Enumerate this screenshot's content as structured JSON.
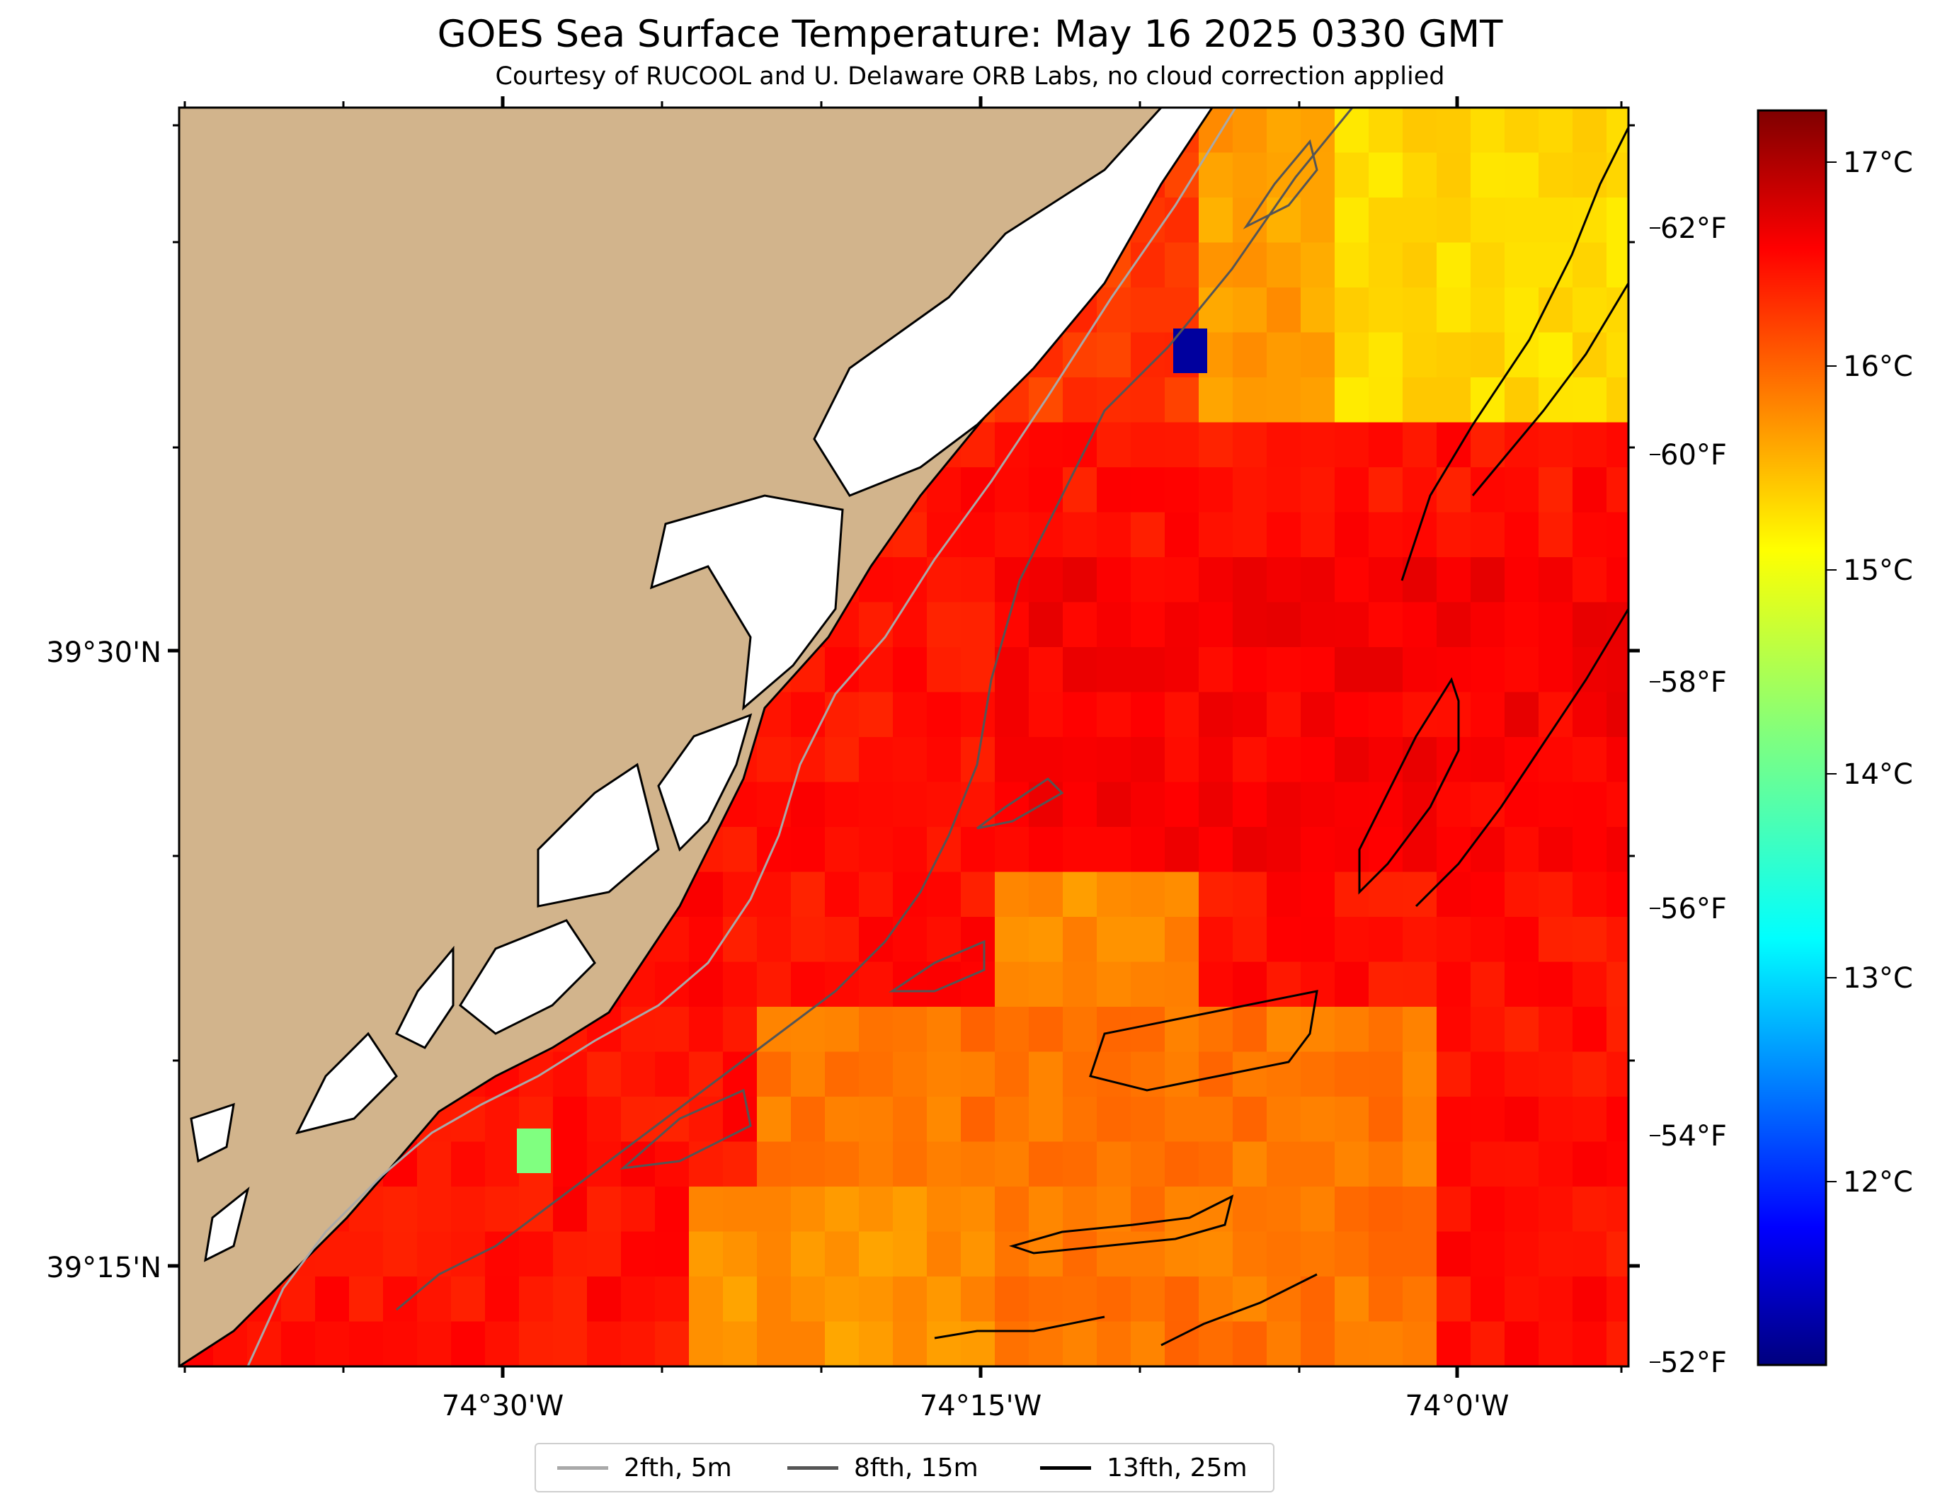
{
  "title": "GOES Sea Surface Temperature: May 16 2025 0330 GMT",
  "subtitle": "Courtesy of RUCOOL and U. Delaware ORB Labs, no cloud correction applied",
  "map": {
    "lat_labels": [
      "39°30'N",
      "39°15'N"
    ],
    "lon_labels": [
      "74°30'W",
      "74°15'W",
      "74°0'W"
    ],
    "land_color": "#d2b48c",
    "nodata_color": "#ffffff"
  },
  "colorbar": {
    "unit": "°C",
    "celsius_labels": [
      "17°C",
      "16°C",
      "15°C",
      "14°C",
      "13°C",
      "12°C"
    ],
    "fahrenheit_labels": [
      "62°F",
      "60°F",
      "58°F",
      "56°F",
      "54°F",
      "52°F"
    ],
    "colormap": "jet",
    "range_celsius": [
      11.1,
      17.3
    ]
  },
  "legend": [
    {
      "label": "2fth, 5m",
      "color": "#a9a9a9"
    },
    {
      "label": "8fth, 15m",
      "color": "#555555"
    },
    {
      "label": "13fth, 25m",
      "color": "#000000"
    }
  ]
}
